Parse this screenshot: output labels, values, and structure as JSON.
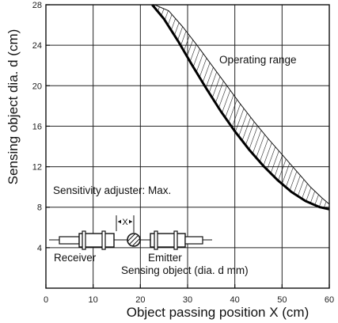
{
  "chart_data": {
    "type": "area",
    "xlabel": "Object passing position X (cm)",
    "ylabel": "Sensing object dia. d (cm)",
    "xlim": [
      0,
      60
    ],
    "ylim": [
      0,
      28
    ],
    "xticks": [
      0,
      10,
      20,
      30,
      40,
      50,
      60
    ],
    "yticks": [
      4,
      8,
      12,
      16,
      20,
      24,
      28
    ],
    "grid": true,
    "series": [
      {
        "role": "lower-boundary",
        "x": [
          22.5,
          25,
          28,
          31,
          34,
          37,
          40,
          43,
          46,
          49,
          52,
          55,
          58,
          60
        ],
        "y": [
          28,
          26.6,
          24.4,
          22.0,
          19.7,
          17.5,
          15.5,
          13.7,
          12.1,
          10.7,
          9.5,
          8.6,
          8.0,
          7.8
        ]
      },
      {
        "role": "upper-boundary",
        "x": [
          23.0,
          26,
          29,
          32,
          35,
          38,
          41,
          44,
          47,
          50,
          53,
          56,
          58.5,
          60
        ],
        "y": [
          28,
          27.4,
          25.8,
          24.0,
          22.1,
          20.2,
          18.3,
          16.5,
          14.8,
          13.2,
          11.6,
          10.0,
          8.9,
          8.3
        ]
      }
    ],
    "annotations": {
      "operating_range": "Operating range",
      "sensitivity": "Sensitivity adjuster: Max.",
      "receiver": "Receiver",
      "emitter": "Emitter",
      "sensing_object": "Sensing object (dia. d mm)",
      "x_marker": "X"
    }
  }
}
